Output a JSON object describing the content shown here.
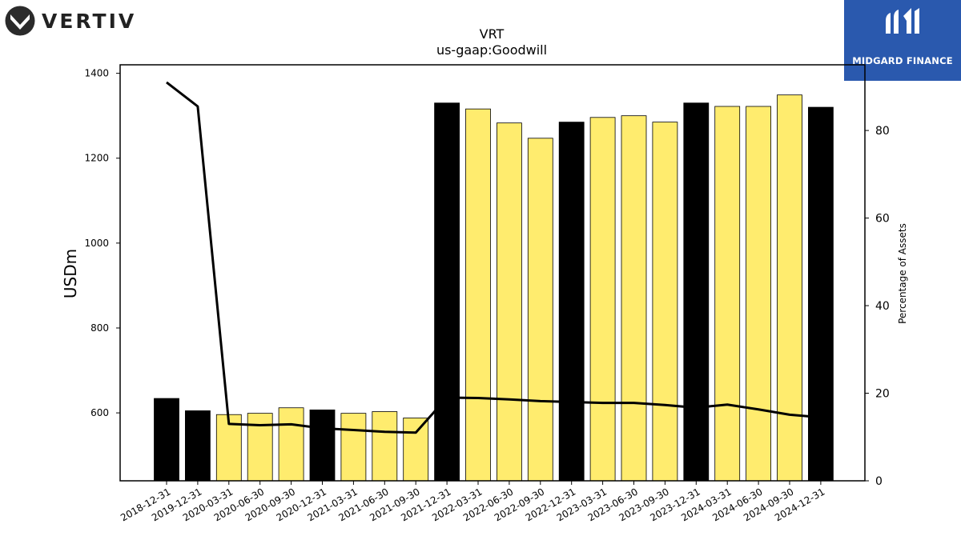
{
  "branding": {
    "left_logo_text": "VERTIV",
    "left_logo_icon": "vertiv-v-mark-icon",
    "right_logo_text": "MIDGARD FINANCE",
    "right_logo_icon": "midgard-m-mark-icon",
    "right_logo_bg": "#2a59ae"
  },
  "chart_data": {
    "type": "bar",
    "title": "VRT",
    "subtitle": "us-gaap:Goodwill",
    "ylabel": "USDm",
    "y2label": "Percentage of Assets",
    "ylim": [
      440,
      1420
    ],
    "y2lim": [
      0,
      95
    ],
    "yticks": [
      600,
      800,
      1000,
      1200,
      1400
    ],
    "y2ticks": [
      0,
      20,
      40,
      60,
      80
    ],
    "categories": [
      "2018-12-31",
      "2019-12-31",
      "2020-03-31",
      "2020-06-30",
      "2020-09-30",
      "2020-12-31",
      "2021-03-31",
      "2021-06-30",
      "2021-09-30",
      "2021-12-31",
      "2022-03-31",
      "2022-06-30",
      "2022-09-30",
      "2022-12-31",
      "2023-03-31",
      "2023-06-30",
      "2023-09-30",
      "2023-12-31",
      "2024-03-31",
      "2024-06-30",
      "2024-09-30",
      "2024-12-31"
    ],
    "series": [
      {
        "kind": "bar",
        "values": [
          634,
          605,
          596,
          599,
          612,
          607,
          599,
          603,
          588,
          1330,
          1316,
          1283,
          1247,
          1285,
          1296,
          1300,
          1285,
          1330,
          1322,
          1322,
          1349,
          1320
        ],
        "annual": [
          true,
          true,
          false,
          false,
          false,
          true,
          false,
          false,
          false,
          true,
          false,
          false,
          false,
          true,
          false,
          false,
          false,
          true,
          false,
          false,
          false,
          true
        ]
      },
      {
        "kind": "line",
        "axis": "right",
        "values": [
          91,
          85.5,
          13,
          12.7,
          12.9,
          12,
          11.6,
          11.2,
          11,
          19,
          18.9,
          18.6,
          18.2,
          18,
          17.8,
          17.8,
          17.3,
          16.7,
          17.4,
          16.3,
          15.1,
          14.5
        ]
      }
    ],
    "colors": {
      "annual_bar": "#000000",
      "quarter_bar": "#ffec6e",
      "line": "#000000"
    },
    "grid": false
  }
}
